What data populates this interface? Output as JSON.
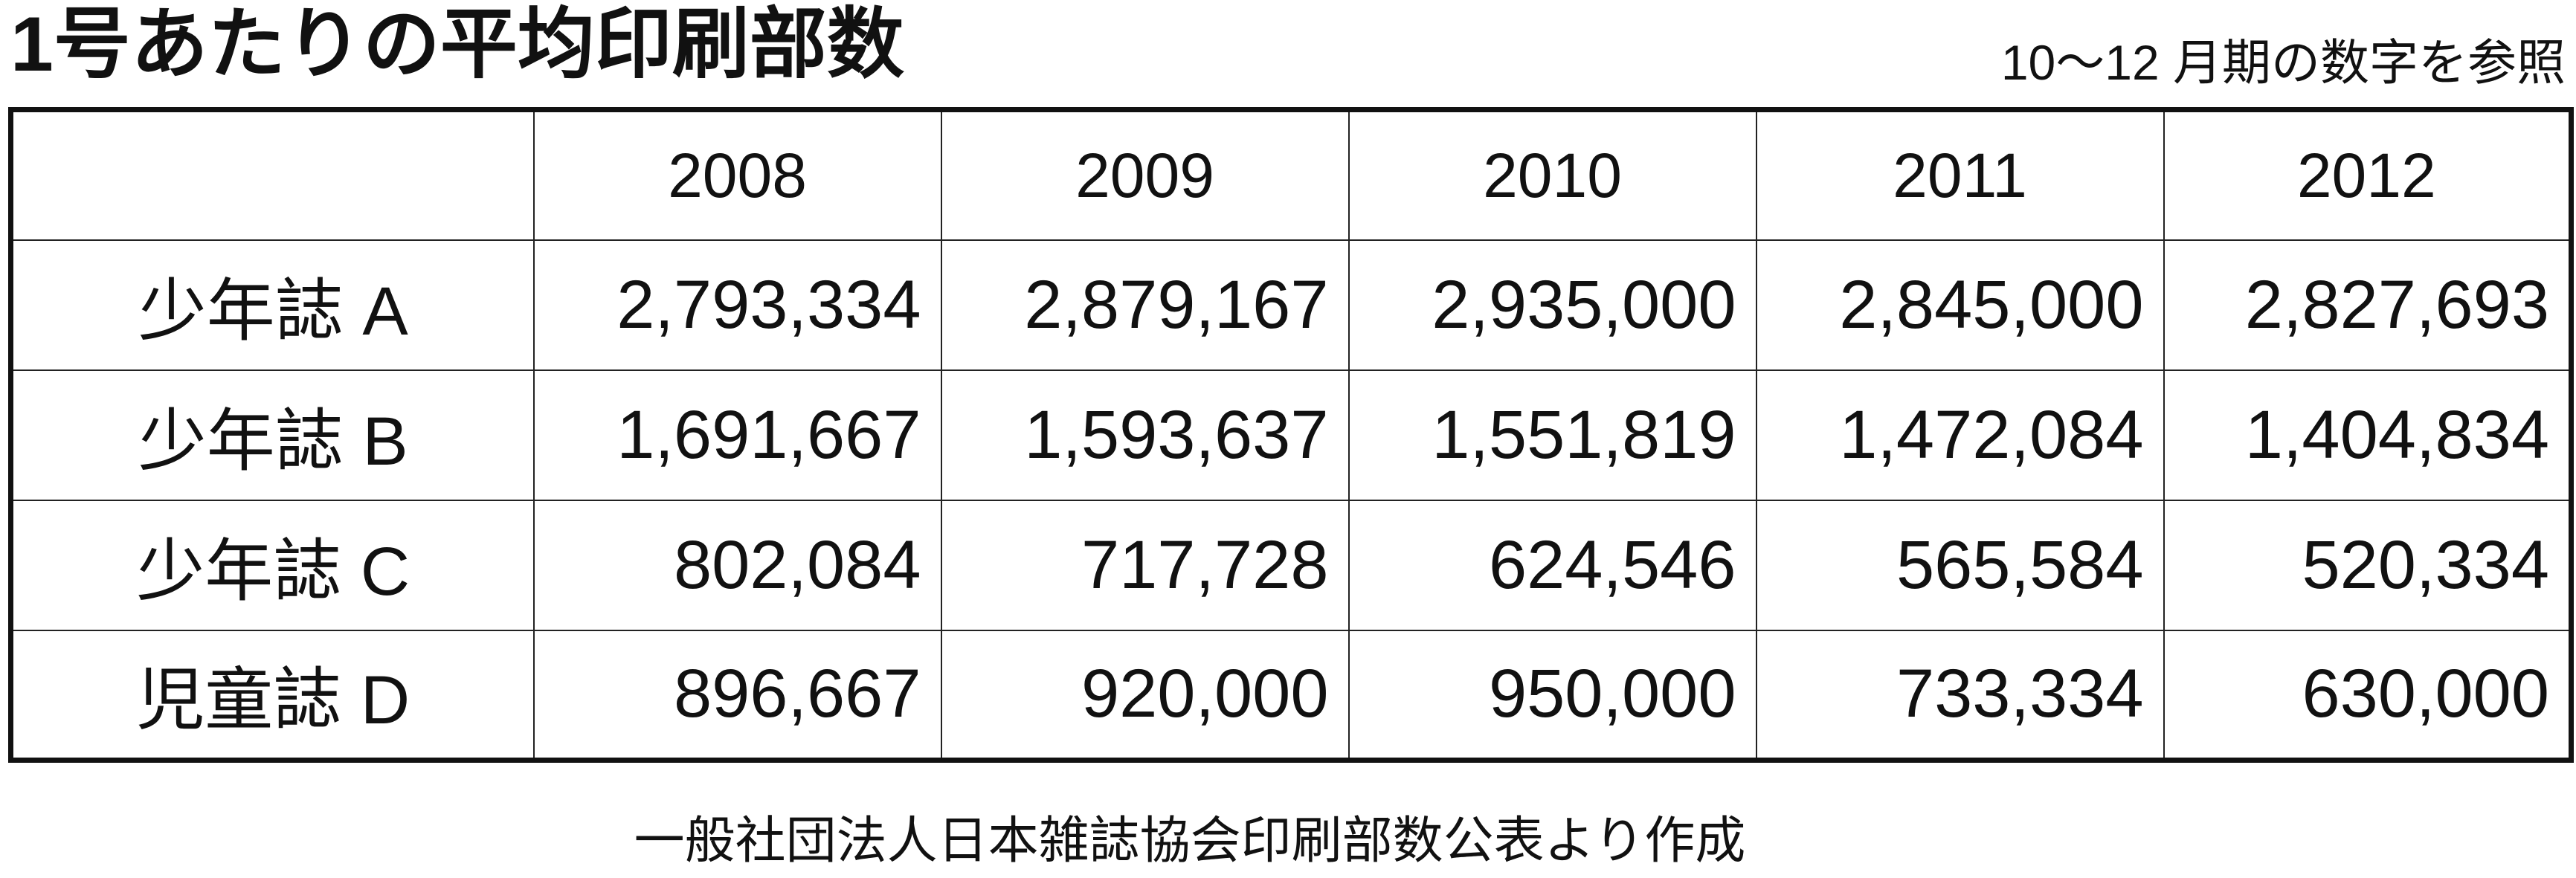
{
  "title": "1号あたりの平均印刷部数",
  "note": "10〜12 月期の数字を参照",
  "table": {
    "header": [
      "",
      "2008",
      "2009",
      "2010",
      "2011",
      "2012"
    ],
    "rows": [
      [
        "少年誌 A",
        "2,793,334",
        "2,879,167",
        "2,935,000",
        "2,845,000",
        "2,827,693"
      ],
      [
        "少年誌 B",
        "1,691,667",
        "1,593,637",
        "1,551,819",
        "1,472,084",
        "1,404,834"
      ],
      [
        "少年誌 C",
        "802,084",
        "717,728",
        "624,546",
        "565,584",
        "520,334"
      ],
      [
        "児童誌 D",
        "896,667",
        "920,000",
        "950,000",
        "733,334",
        "630,000"
      ]
    ]
  },
  "source": "一般社団法人日本雑誌協会印刷部数公表より作成"
}
